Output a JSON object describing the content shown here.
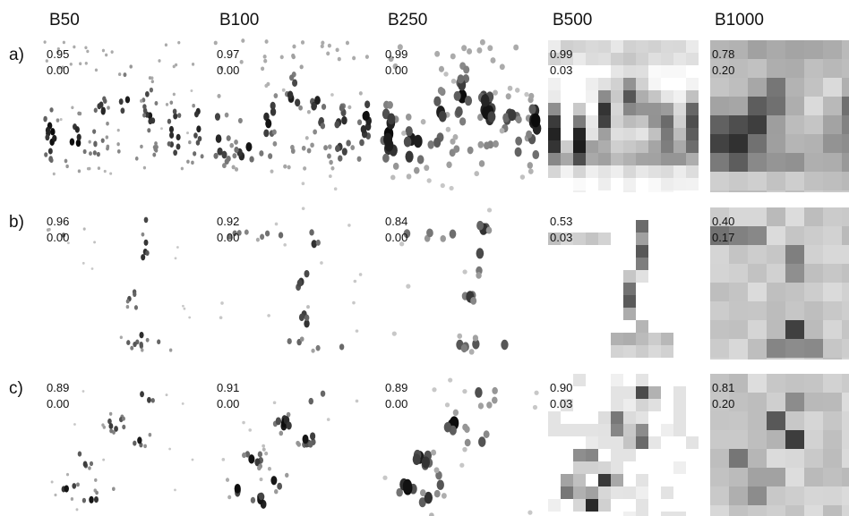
{
  "columns": [
    "B50",
    "B100",
    "B250",
    "B500",
    "B1000"
  ],
  "rows": [
    {
      "label": "a)",
      "cells": [
        {
          "top": "0.95",
          "bottom": "0.00"
        },
        {
          "top": "0.97",
          "bottom": "0.00"
        },
        {
          "top": "0.99",
          "bottom": "0.00"
        },
        {
          "top": "0.99",
          "bottom": "0.03"
        },
        {
          "top": "0.78",
          "bottom": "0.20"
        }
      ]
    },
    {
      "label": "b)",
      "cells": [
        {
          "top": "0.96",
          "bottom": "0.00"
        },
        {
          "top": "0.92",
          "bottom": "0.00"
        },
        {
          "top": "0.84",
          "bottom": "0.00"
        },
        {
          "top": "0.53",
          "bottom": "0.03"
        },
        {
          "top": "0.40",
          "bottom": "0.17"
        }
      ]
    },
    {
      "label": "c)",
      "cells": [
        {
          "top": "0.89",
          "bottom": "0.00"
        },
        {
          "top": "0.91",
          "bottom": "0.00"
        },
        {
          "top": "0.89",
          "bottom": "0.00"
        },
        {
          "top": "0.90",
          "bottom": "0.03"
        },
        {
          "top": "0.81",
          "bottom": "0.20"
        }
      ]
    }
  ]
}
